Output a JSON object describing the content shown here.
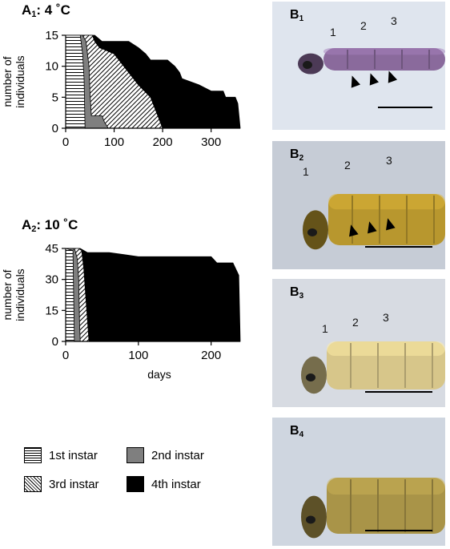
{
  "panels": {
    "a1": {
      "title_main": "A",
      "title_sub": "1",
      "title_rest": ": 4 ˚C"
    },
    "a2": {
      "title_main": "A",
      "title_sub": "2",
      "title_rest": ": 10 ˚C"
    }
  },
  "chart_data": [
    {
      "type": "area",
      "id": "A1",
      "title": "A1: 4 ˚C",
      "xlabel": "",
      "ylabel": "number of individuals",
      "xlim": [
        0,
        360
      ],
      "ylim": [
        0,
        15
      ],
      "xticks": [
        0,
        100,
        200,
        300
      ],
      "yticks": [
        0,
        5,
        10,
        15
      ],
      "stacked": true,
      "series": [
        {
          "name": "1st instar",
          "pattern": "horizontal",
          "color": "#ffffff",
          "points": [
            [
              0,
              15
            ],
            [
              30,
              15
            ],
            [
              35,
              12
            ],
            [
              38,
              8
            ],
            [
              40,
              0
            ]
          ]
        },
        {
          "name": "2nd instar",
          "pattern": "solid",
          "color": "#7f7f7f",
          "points": [
            [
              0,
              15
            ],
            [
              35,
              15
            ],
            [
              42,
              14
            ],
            [
              48,
              10
            ],
            [
              50,
              6
            ],
            [
              53,
              2
            ],
            [
              75,
              2
            ],
            [
              80,
              1
            ],
            [
              88,
              0
            ]
          ]
        },
        {
          "name": "3rd instar",
          "pattern": "diagonal",
          "color": "#ffffff",
          "points": [
            [
              0,
              15
            ],
            [
              55,
              15
            ],
            [
              60,
              14
            ],
            [
              70,
              13
            ],
            [
              100,
              12
            ],
            [
              120,
              10
            ],
            [
              150,
              7
            ],
            [
              175,
              5
            ],
            [
              190,
              2
            ],
            [
              200,
              0
            ]
          ]
        },
        {
          "name": "4th instar",
          "pattern": "solid",
          "color": "#000000",
          "points": [
            [
              0,
              15
            ],
            [
              60,
              15
            ],
            [
              75,
              14
            ],
            [
              130,
              14
            ],
            [
              150,
              13
            ],
            [
              165,
              12
            ],
            [
              175,
              11
            ],
            [
              210,
              11
            ],
            [
              225,
              10
            ],
            [
              235,
              9
            ],
            [
              240,
              8
            ],
            [
              275,
              7
            ],
            [
              300,
              6
            ],
            [
              325,
              6
            ],
            [
              330,
              5
            ],
            [
              350,
              5
            ],
            [
              355,
              4
            ],
            [
              360,
              0
            ]
          ]
        }
      ]
    },
    {
      "type": "area",
      "id": "A2",
      "title": "A2: 10 ˚C",
      "xlabel": "days",
      "ylabel": "number of individuals",
      "xlim": [
        0,
        240
      ],
      "ylim": [
        0,
        45
      ],
      "xticks": [
        0,
        100,
        200
      ],
      "yticks": [
        0,
        15,
        30,
        45
      ],
      "stacked": true,
      "series": [
        {
          "name": "1st instar",
          "pattern": "horizontal",
          "color": "#ffffff",
          "points": [
            [
              0,
              45
            ],
            [
              10,
              44
            ],
            [
              12,
              0
            ]
          ]
        },
        {
          "name": "2nd instar",
          "pattern": "solid",
          "color": "#7f7f7f",
          "points": [
            [
              0,
              45
            ],
            [
              10,
              45
            ],
            [
              13,
              44
            ],
            [
              16,
              40
            ],
            [
              18,
              30
            ],
            [
              19,
              10
            ],
            [
              20,
              0
            ]
          ]
        },
        {
          "name": "3rd instar",
          "pattern": "diagonal",
          "color": "#ffffff",
          "points": [
            [
              0,
              45
            ],
            [
              18,
              45
            ],
            [
              22,
              44
            ],
            [
              25,
              35
            ],
            [
              28,
              20
            ],
            [
              32,
              0
            ]
          ]
        },
        {
          "name": "4th instar",
          "pattern": "solid",
          "color": "#000000",
          "points": [
            [
              0,
              45
            ],
            [
              20,
              45
            ],
            [
              30,
              43
            ],
            [
              60,
              43
            ],
            [
              80,
              42
            ],
            [
              100,
              41
            ],
            [
              200,
              41
            ],
            [
              208,
              38
            ],
            [
              230,
              38
            ],
            [
              238,
              32
            ],
            [
              240,
              0
            ]
          ]
        }
      ]
    }
  ],
  "legend": [
    {
      "label": "1st instar",
      "pattern": "horizontal"
    },
    {
      "label": "2nd instar",
      "pattern": "solid-gray"
    },
    {
      "label": "3rd instar",
      "pattern": "diagonal"
    },
    {
      "label": "4th instar",
      "pattern": "solid-black"
    }
  ],
  "photos": [
    {
      "label_main": "B",
      "label_sub": "1",
      "segments": [
        "1",
        "2",
        "3"
      ],
      "arrows": 3,
      "bg": "#dfe5ee",
      "body": "#8a6a9c"
    },
    {
      "label_main": "B",
      "label_sub": "2",
      "segments": [
        "1",
        "2",
        "3"
      ],
      "arrows": 3,
      "bg": "#c6ccd6",
      "body": "#b8972e"
    },
    {
      "label_main": "B",
      "label_sub": "3",
      "segments": [
        "1",
        "2",
        "3"
      ],
      "arrows": 0,
      "bg": "#d7dbe2",
      "body": "#d7c68a"
    },
    {
      "label_main": "B",
      "label_sub": "4",
      "segments": [],
      "arrows": 0,
      "bg": "#cfd6e0",
      "body": "#a99448"
    }
  ]
}
